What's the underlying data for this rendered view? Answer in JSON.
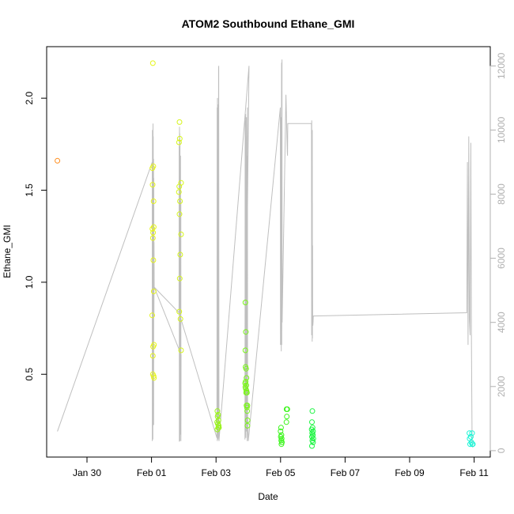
{
  "chart_data": {
    "type": "scatter",
    "title": "ATOM2 Southbound Ethane_GMI",
    "xlabel": "Date",
    "ylabel": "Ethane_GMI",
    "x_axis_type": "date",
    "xlim": [
      "2017-01-28T18:00",
      "2017-02-11T12:00"
    ],
    "ylim": [
      0.05,
      2.28
    ],
    "y2lim": [
      -200,
      12600
    ],
    "x_ticks": [
      {
        "date": "2017-01-30",
        "label": "Jan 30"
      },
      {
        "date": "2017-02-01",
        "label": "Feb 01"
      },
      {
        "date": "2017-02-03",
        "label": "Feb 03"
      },
      {
        "date": "2017-02-05",
        "label": "Feb 05"
      },
      {
        "date": "2017-02-07",
        "label": "Feb 07"
      },
      {
        "date": "2017-02-09",
        "label": "Feb 09"
      },
      {
        "date": "2017-02-11",
        "label": "Feb 11"
      }
    ],
    "y_ticks": [
      {
        "value": 0.5,
        "label": "0.5"
      },
      {
        "value": 1.0,
        "label": "1.0"
      },
      {
        "value": 1.5,
        "label": "1.5"
      },
      {
        "value": 2.0,
        "label": "2.0"
      }
    ],
    "y2_ticks": [
      {
        "value": 0,
        "label": "0"
      },
      {
        "value": 2000,
        "label": "2000"
      },
      {
        "value": 4000,
        "label": "4000"
      },
      {
        "value": 6000,
        "label": "6000"
      },
      {
        "value": 8000,
        "label": "8000"
      },
      {
        "value": 10000,
        "label": "10000"
      },
      {
        "value": 12000,
        "label": "12000"
      }
    ],
    "grid": false,
    "colors": {
      "altitude_line": "#bfbfbf",
      "axis": "#000000",
      "right_axis": "#b0b0b0"
    },
    "series": [
      {
        "role": "ethane_points",
        "points": [
          {
            "x": "2017-01-29T02:00",
            "y": 1.66,
            "color": "#ff8c1a"
          },
          {
            "x": "2017-02-01T01:00",
            "y": 2.19,
            "color": "#e6f51a"
          },
          {
            "x": "2017-02-01T00:40",
            "y": 1.62,
            "color": "#e6f51a"
          },
          {
            "x": "2017-02-01T01:20",
            "y": 1.63,
            "color": "#e6f51a"
          },
          {
            "x": "2017-02-01T00:50",
            "y": 1.53,
            "color": "#e6f51a"
          },
          {
            "x": "2017-02-01T01:30",
            "y": 1.44,
            "color": "#e6f51a"
          },
          {
            "x": "2017-02-01T00:40",
            "y": 1.29,
            "color": "#e6f51a"
          },
          {
            "x": "2017-02-01T01:10",
            "y": 1.27,
            "color": "#e6f51a"
          },
          {
            "x": "2017-02-01T01:40",
            "y": 1.3,
            "color": "#e6f51a"
          },
          {
            "x": "2017-02-01T01:00",
            "y": 1.24,
            "color": "#e6f51a"
          },
          {
            "x": "2017-02-01T01:20",
            "y": 1.12,
            "color": "#e6f51a"
          },
          {
            "x": "2017-02-01T01:40",
            "y": 0.95,
            "color": "#e6f51a"
          },
          {
            "x": "2017-02-01T00:30",
            "y": 0.82,
            "color": "#e6f51a"
          },
          {
            "x": "2017-02-01T01:50",
            "y": 0.66,
            "color": "#e6f51a"
          },
          {
            "x": "2017-02-01T01:10",
            "y": 0.65,
            "color": "#e6f51a"
          },
          {
            "x": "2017-02-01T01:00",
            "y": 0.6,
            "color": "#e6f51a"
          },
          {
            "x": "2017-02-01T01:00",
            "y": 0.5,
            "color": "#e6f51a"
          },
          {
            "x": "2017-02-01T01:30",
            "y": 0.49,
            "color": "#e6f51a"
          },
          {
            "x": "2017-02-01T01:50",
            "y": 0.48,
            "color": "#e6f51a"
          },
          {
            "x": "2017-02-01T20:50",
            "y": 1.87,
            "color": "#d6f51a"
          },
          {
            "x": "2017-02-01T21:00",
            "y": 1.78,
            "color": "#d6f51a"
          },
          {
            "x": "2017-02-01T20:30",
            "y": 1.76,
            "color": "#d6f51a"
          },
          {
            "x": "2017-02-01T22:00",
            "y": 1.54,
            "color": "#d6f51a"
          },
          {
            "x": "2017-02-01T20:40",
            "y": 1.52,
            "color": "#d6f51a"
          },
          {
            "x": "2017-02-01T20:20",
            "y": 1.49,
            "color": "#d6f51a"
          },
          {
            "x": "2017-02-01T21:10",
            "y": 1.44,
            "color": "#d6f51a"
          },
          {
            "x": "2017-02-01T20:50",
            "y": 1.37,
            "color": "#d6f51a"
          },
          {
            "x": "2017-02-01T22:00",
            "y": 1.26,
            "color": "#d6f51a"
          },
          {
            "x": "2017-02-01T21:20",
            "y": 1.15,
            "color": "#d6f51a"
          },
          {
            "x": "2017-02-01T21:00",
            "y": 1.02,
            "color": "#d6f51a"
          },
          {
            "x": "2017-02-01T20:40",
            "y": 0.84,
            "color": "#d6f51a"
          },
          {
            "x": "2017-02-01T21:30",
            "y": 0.8,
            "color": "#d6f51a"
          },
          {
            "x": "2017-02-01T22:00",
            "y": 0.63,
            "color": "#d6f51a"
          },
          {
            "x": "2017-02-03T01:00",
            "y": 0.3,
            "color": "#99f51a"
          },
          {
            "x": "2017-02-03T01:30",
            "y": 0.28,
            "color": "#99f51a"
          },
          {
            "x": "2017-02-03T01:10",
            "y": 0.27,
            "color": "#99f51a"
          },
          {
            "x": "2017-02-03T01:50",
            "y": 0.25,
            "color": "#99f51a"
          },
          {
            "x": "2017-02-03T00:50",
            "y": 0.24,
            "color": "#99f51a"
          },
          {
            "x": "2017-02-03T01:20",
            "y": 0.23,
            "color": "#99f51a"
          },
          {
            "x": "2017-02-03T02:00",
            "y": 0.22,
            "color": "#99f51a"
          },
          {
            "x": "2017-02-03T01:40",
            "y": 0.21,
            "color": "#99f51a"
          },
          {
            "x": "2017-02-03T01:00",
            "y": 0.2,
            "color": "#99f51a"
          },
          {
            "x": "2017-02-03T02:10",
            "y": 0.21,
            "color": "#99f51a"
          },
          {
            "x": "2017-02-03T21:50",
            "y": 0.89,
            "color": "#7af51a"
          },
          {
            "x": "2017-02-03T22:10",
            "y": 0.73,
            "color": "#7af51a"
          },
          {
            "x": "2017-02-03T21:50",
            "y": 0.63,
            "color": "#7af51a"
          },
          {
            "x": "2017-02-03T22:00",
            "y": 0.54,
            "color": "#7af51a"
          },
          {
            "x": "2017-02-03T22:20",
            "y": 0.53,
            "color": "#7af51a"
          },
          {
            "x": "2017-02-03T22:40",
            "y": 0.48,
            "color": "#7af51a"
          },
          {
            "x": "2017-02-03T22:00",
            "y": 0.46,
            "color": "#7af51a"
          },
          {
            "x": "2017-02-03T21:40",
            "y": 0.45,
            "color": "#7af51a"
          },
          {
            "x": "2017-02-03T22:30",
            "y": 0.44,
            "color": "#7af51a"
          },
          {
            "x": "2017-02-03T21:50",
            "y": 0.43,
            "color": "#7af51a"
          },
          {
            "x": "2017-02-03T22:10",
            "y": 0.42,
            "color": "#7af51a"
          },
          {
            "x": "2017-02-03T22:40",
            "y": 0.41,
            "color": "#7af51a"
          },
          {
            "x": "2017-02-03T22:20",
            "y": 0.4,
            "color": "#7af51a"
          },
          {
            "x": "2017-02-03T23:00",
            "y": 0.4,
            "color": "#7af51a"
          },
          {
            "x": "2017-02-03T22:40",
            "y": 0.33,
            "color": "#7af51a"
          },
          {
            "x": "2017-02-03T23:20",
            "y": 0.33,
            "color": "#7af51a"
          },
          {
            "x": "2017-02-03T23:00",
            "y": 0.32,
            "color": "#7af51a"
          },
          {
            "x": "2017-02-03T23:10",
            "y": 0.3,
            "color": "#7af51a"
          },
          {
            "x": "2017-02-03T23:30",
            "y": 0.25,
            "color": "#7af51a"
          },
          {
            "x": "2017-02-03T23:20",
            "y": 0.22,
            "color": "#7af51a"
          },
          {
            "x": "2017-02-05T00:20",
            "y": 0.21,
            "color": "#3af51a"
          },
          {
            "x": "2017-02-05T00:00",
            "y": 0.19,
            "color": "#3af51a"
          },
          {
            "x": "2017-02-05T00:40",
            "y": 0.17,
            "color": "#3af51a"
          },
          {
            "x": "2017-02-05T00:10",
            "y": 0.16,
            "color": "#3af51a"
          },
          {
            "x": "2017-02-05T00:50",
            "y": 0.15,
            "color": "#3af51a"
          },
          {
            "x": "2017-02-05T00:30",
            "y": 0.14,
            "color": "#3af51a"
          },
          {
            "x": "2017-02-05T01:00",
            "y": 0.13,
            "color": "#3af51a"
          },
          {
            "x": "2017-02-05T00:40",
            "y": 0.12,
            "color": "#3af51a"
          },
          {
            "x": "2017-02-05T04:30",
            "y": 0.31,
            "color": "#3af51a"
          },
          {
            "x": "2017-02-05T05:00",
            "y": 0.31,
            "color": "#3af51a"
          },
          {
            "x": "2017-02-05T04:40",
            "y": 0.27,
            "color": "#3af51a"
          },
          {
            "x": "2017-02-05T04:20",
            "y": 0.24,
            "color": "#3af51a"
          },
          {
            "x": "2017-02-05T23:40",
            "y": 0.3,
            "color": "#1af540"
          },
          {
            "x": "2017-02-05T23:20",
            "y": 0.24,
            "color": "#1af540"
          },
          {
            "x": "2017-02-05T23:50",
            "y": 0.21,
            "color": "#1af540"
          },
          {
            "x": "2017-02-05T23:10",
            "y": 0.2,
            "color": "#1af540"
          },
          {
            "x": "2017-02-06T00:10",
            "y": 0.19,
            "color": "#1af540"
          },
          {
            "x": "2017-02-05T23:30",
            "y": 0.18,
            "color": "#1af540"
          },
          {
            "x": "2017-02-06T00:00",
            "y": 0.17,
            "color": "#1af540"
          },
          {
            "x": "2017-02-05T23:20",
            "y": 0.16,
            "color": "#1af540"
          },
          {
            "x": "2017-02-06T00:20",
            "y": 0.15,
            "color": "#1af540"
          },
          {
            "x": "2017-02-05T23:40",
            "y": 0.14,
            "color": "#1af540"
          },
          {
            "x": "2017-02-06T00:10",
            "y": 0.13,
            "color": "#1af540"
          },
          {
            "x": "2017-02-05T23:20",
            "y": 0.11,
            "color": "#1af540"
          },
          {
            "x": "2017-02-10T20:30",
            "y": 0.18,
            "color": "#1af5d6"
          },
          {
            "x": "2017-02-10T22:30",
            "y": 0.18,
            "color": "#1af5d6"
          },
          {
            "x": "2017-02-10T21:30",
            "y": 0.16,
            "color": "#1af5d6"
          },
          {
            "x": "2017-02-10T20:40",
            "y": 0.15,
            "color": "#1af5d6"
          },
          {
            "x": "2017-02-10T22:00",
            "y": 0.13,
            "color": "#1af5d6"
          },
          {
            "x": "2017-02-10T21:00",
            "y": 0.12,
            "color": "#1af5d6"
          },
          {
            "x": "2017-02-10T22:40",
            "y": 0.12,
            "color": "#1af5d6"
          },
          {
            "x": "2017-02-10T23:00",
            "y": 0.12,
            "color": "#1af5d6"
          }
        ]
      },
      {
        "role": "altitude_line",
        "axis": "right",
        "x": [
          "2017-01-29T02:00",
          "2017-02-01T00:30",
          "2017-02-01T00:36",
          "2017-02-01T00:42",
          "2017-02-01T00:48",
          "2017-02-01T00:54",
          "2017-02-01T01:00",
          "2017-02-01T01:06",
          "2017-02-01T01:12",
          "2017-02-01T01:18",
          "2017-02-01T01:24",
          "2017-02-01T01:30",
          "2017-02-01T01:36",
          "2017-02-01T01:42",
          "2017-02-01T01:48",
          "2017-02-01T01:54",
          "2017-02-01T02:00",
          "2017-02-01T20:30",
          "2017-02-01T20:36",
          "2017-02-01T20:42",
          "2017-02-01T20:48",
          "2017-02-01T20:54",
          "2017-02-01T21:00",
          "2017-02-01T21:06",
          "2017-02-01T21:12",
          "2017-02-01T21:18",
          "2017-02-01T21:24",
          "2017-02-01T21:30",
          "2017-02-01T21:36",
          "2017-02-01T21:42",
          "2017-02-01T21:48",
          "2017-02-01T21:54",
          "2017-02-01T22:00",
          "2017-02-01T02:00",
          "2017-02-01T20:30",
          "2017-02-03T00:40",
          "2017-02-03T00:48",
          "2017-02-03T00:56",
          "2017-02-03T01:04",
          "2017-02-03T01:12",
          "2017-02-03T01:20",
          "2017-02-03T01:28",
          "2017-02-03T01:36",
          "2017-02-03T01:44",
          "2017-02-03T01:52",
          "2017-02-03T02:00",
          "2017-02-03T02:10",
          "2017-02-04T00:30",
          "2017-02-03T21:30",
          "2017-02-03T21:40",
          "2017-02-03T21:50",
          "2017-02-03T22:00",
          "2017-02-03T22:10",
          "2017-02-03T22:20",
          "2017-02-03T22:30",
          "2017-02-03T22:40",
          "2017-02-03T22:50",
          "2017-02-03T23:00",
          "2017-02-03T23:10",
          "2017-02-03T23:20",
          "2017-02-03T23:30",
          "2017-02-04T00:00",
          "2017-02-04T23:50",
          "2017-02-04T23:58",
          "2017-02-05T00:06",
          "2017-02-05T00:14",
          "2017-02-05T00:22",
          "2017-02-05T00:30",
          "2017-02-05T00:38",
          "2017-02-05T00:46",
          "2017-02-05T00:54",
          "2017-02-05T01:02",
          "2017-02-05T01:10",
          "2017-02-05T04:00",
          "2017-02-05T04:10",
          "2017-02-05T04:20",
          "2017-02-05T04:30",
          "2017-02-05T04:40",
          "2017-02-05T04:50",
          "2017-02-05T05:00",
          "2017-02-05T05:10",
          "2017-02-05T05:20",
          "2017-02-05T23:00",
          "2017-02-05T23:06",
          "2017-02-05T23:12",
          "2017-02-05T23:18",
          "2017-02-05T23:24",
          "2017-02-05T23:30",
          "2017-02-05T23:36",
          "2017-02-05T23:42",
          "2017-02-05T23:48",
          "2017-02-05T23:54",
          "2017-02-06T00:00",
          "2017-02-06T00:10",
          "2017-02-06T00:20",
          "2017-02-10T18:30",
          "2017-02-10T19:00",
          "2017-02-10T19:30",
          "2017-02-10T20:00",
          "2017-02-10T20:30",
          "2017-02-10T21:00",
          "2017-02-10T21:30",
          "2017-02-10T22:00",
          "2017-02-10T22:30",
          "2017-02-10T23:00"
        ],
        "values": [
          600,
          9000,
          300,
          10000,
          500,
          9600,
          350,
          10200,
          900,
          9800,
          1500,
          9100,
          800,
          8500,
          4200,
          6500,
          5100,
          4300,
          9500,
          280,
          10100,
          400,
          9900,
          300,
          9700,
          1700,
          8400,
          500,
          9200,
          1200,
          7800,
          300,
          3000,
          5100,
          4300,
          400,
          10700,
          300,
          11000,
          500,
          10600,
          350,
          10800,
          400,
          11900,
          12000,
          300,
          12000,
          350,
          10300,
          500,
          10500,
          400,
          9800,
          600,
          10400,
          900,
          9200,
          300,
          10700,
          1200,
          300,
          10700,
          3300,
          10400,
          3500,
          9800,
          3100,
          10100,
          12100,
          3300,
          12200,
          4000,
          11100,
          10800,
          10500,
          10200,
          9900,
          9600,
          9300,
          9200,
          10200,
          10200,
          3600,
          10300,
          3800,
          9900,
          3400,
          10000,
          3500,
          6400,
          4000,
          3900,
          4000,
          4200,
          4300,
          9000,
          3300,
          9800,
          4100,
          3600,
          9600,
          3300,
          300,
          100
        ]
      }
    ]
  }
}
